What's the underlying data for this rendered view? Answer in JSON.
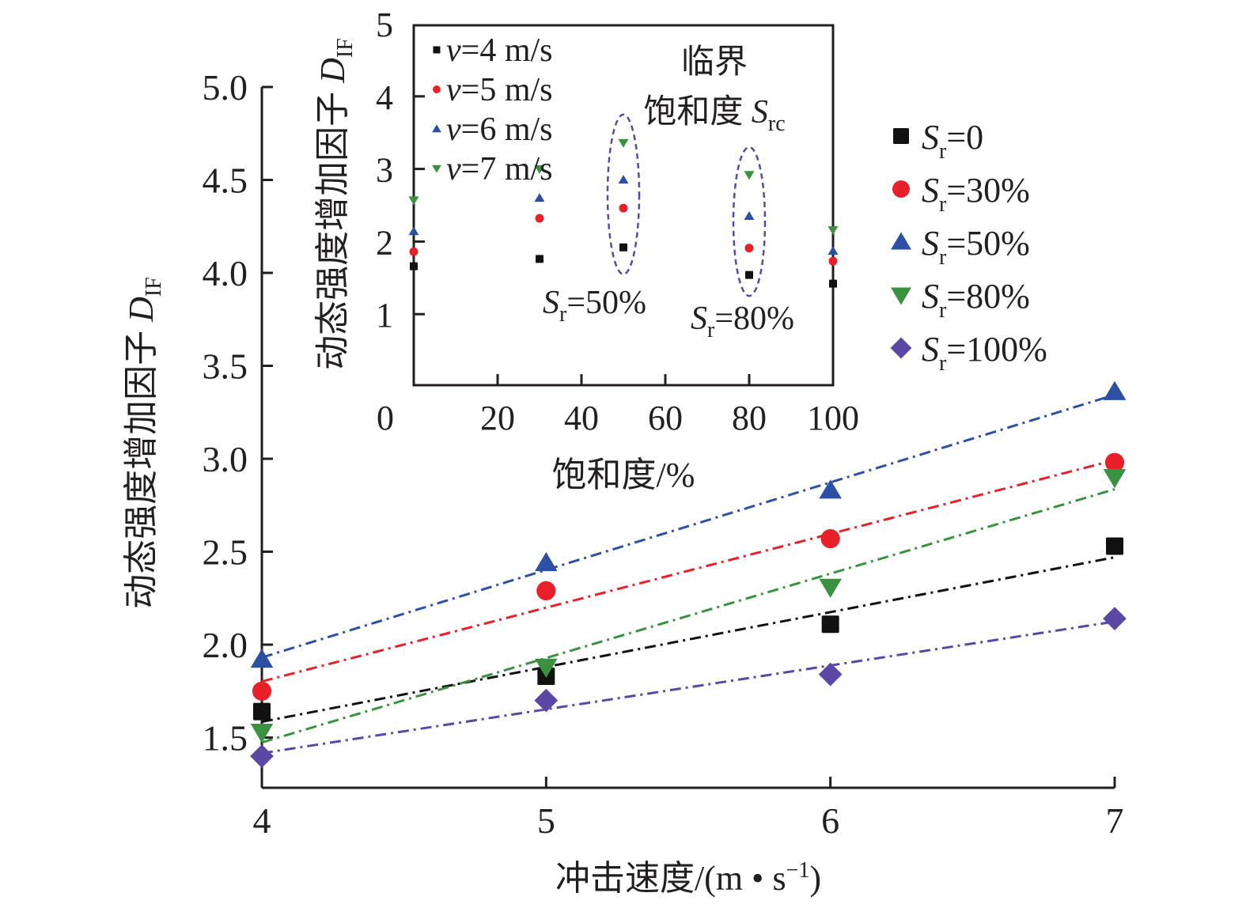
{
  "chart_data": [
    {
      "id": "main",
      "type": "scatter",
      "title": "",
      "xlabel": "冲击速度/(m • s⁻¹)",
      "xlabel_parts": {
        "main": "冲击速度/(m • s",
        "sup": "−1",
        "end": ")"
      },
      "ylabel": "动态强度增加因子 D_IF",
      "ylabel_parts": {
        "main": "动态强度增加因子 ",
        "var": "D",
        "sub": "IF"
      },
      "x": [
        4,
        5,
        6,
        7
      ],
      "x_ticks": [
        "4",
        "5",
        "6",
        "7"
      ],
      "xlim": [
        4,
        7
      ],
      "y_ticks": [
        "1.5",
        "2.0",
        "2.5",
        "3.0",
        "3.5",
        "4.0",
        "4.5",
        "5.0"
      ],
      "y_tick_values": [
        1.5,
        2.0,
        2.5,
        3.0,
        3.5,
        4.0,
        4.5,
        5.0
      ],
      "ylim": [
        1.23,
        5.0
      ],
      "grid": false,
      "legend_position": "right",
      "trendlines": "linear fit per series, dash-dot",
      "series": [
        {
          "name": "Sr=0",
          "label_var": "S",
          "label_sub": "r",
          "label_rest": "=0",
          "marker": "square",
          "color": "#111111",
          "values": [
            1.64,
            1.83,
            2.11,
            2.53
          ]
        },
        {
          "name": "Sr=30%",
          "label_var": "S",
          "label_sub": "r",
          "label_rest": "=30%",
          "marker": "circle",
          "color": "#e8202a",
          "values": [
            1.75,
            2.29,
            2.57,
            2.98
          ]
        },
        {
          "name": "Sr=50%",
          "label_var": "S",
          "label_sub": "r",
          "label_rest": "=50%",
          "marker": "triangle-up",
          "color": "#2e4fa3",
          "values": [
            1.92,
            2.44,
            2.83,
            3.36
          ]
        },
        {
          "name": "Sr=80%",
          "label_var": "S",
          "label_sub": "r",
          "label_rest": "=80%",
          "marker": "triangle-down",
          "color": "#3a9140",
          "values": [
            1.53,
            1.88,
            2.31,
            2.9
          ]
        },
        {
          "name": "Sr=100%",
          "label_var": "S",
          "label_sub": "r",
          "label_rest": "=100%",
          "marker": "diamond",
          "color": "#5a48a4",
          "values": [
            1.4,
            1.7,
            1.84,
            2.14
          ]
        }
      ]
    },
    {
      "id": "inset",
      "type": "scatter",
      "title": "",
      "xlabel": "饱和度/%",
      "ylabel": "动态强度增加因子 D_IF",
      "ylabel_parts": {
        "main": "动态强度增加因子 ",
        "var": "D",
        "sub": "IF"
      },
      "x": [
        0,
        30,
        50,
        80,
        100
      ],
      "x_ticks": [
        "0",
        "20",
        "40",
        "60",
        "80",
        "100"
      ],
      "x_tick_values": [
        0,
        20,
        40,
        60,
        80,
        100
      ],
      "xlim": [
        0,
        100
      ],
      "y_ticks": [
        "1",
        "2",
        "3",
        "4",
        "5"
      ],
      "y_tick_values": [
        1,
        2,
        3,
        4,
        5
      ],
      "ylim": [
        0,
        5
      ],
      "grid": false,
      "legend_position": "top-left",
      "series": [
        {
          "name": "v=4 m/s",
          "label_var": "v",
          "label_rest": "=4 m/s",
          "marker": "square",
          "color": "#111111",
          "values": [
            1.66,
            1.76,
            1.92,
            1.54,
            1.42
          ]
        },
        {
          "name": "v=5 m/s",
          "label_var": "v",
          "label_rest": "=5 m/s",
          "marker": "circle",
          "color": "#e8202a",
          "values": [
            1.86,
            2.32,
            2.46,
            1.91,
            1.73
          ]
        },
        {
          "name": "v=6 m/s",
          "label_var": "v",
          "label_rest": "=6 m/s",
          "marker": "triangle-up",
          "color": "#2e4fa3",
          "values": [
            2.14,
            2.6,
            2.85,
            2.35,
            1.87
          ]
        },
        {
          "name": "v=7 m/s",
          "label_var": "v",
          "label_rest": "=7 m/s",
          "marker": "triangle-down",
          "color": "#3a9140",
          "values": [
            2.57,
            3.0,
            3.36,
            2.92,
            2.16
          ]
        }
      ],
      "annotations": [
        {
          "text_line1": "临界",
          "text_line2": "饱和度 ",
          "var": "S",
          "sub": "rc"
        },
        {
          "label": "Sr=50%",
          "var": "S",
          "sub": "r",
          "rest": "=50%",
          "x": 50
        },
        {
          "label": "Sr=80%",
          "var": "S",
          "sub": "r",
          "rest": "=80%",
          "x": 80
        }
      ],
      "highlight_color": "#5a48a4"
    }
  ]
}
